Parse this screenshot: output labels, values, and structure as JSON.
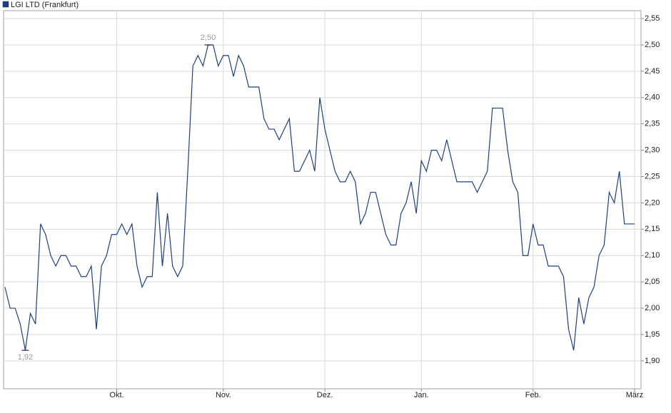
{
  "chart_data": {
    "type": "line",
    "categories": [
      null,
      null,
      null,
      null,
      null,
      null,
      null,
      null,
      null,
      null,
      null,
      null,
      null,
      null,
      null,
      null,
      null,
      null,
      null,
      null,
      null,
      null,
      "Okt.",
      null,
      null,
      null,
      null,
      null,
      null,
      null,
      null,
      null,
      null,
      null,
      null,
      null,
      null,
      null,
      null,
      null,
      null,
      null,
      null,
      "Nov.",
      null,
      null,
      null,
      null,
      null,
      null,
      null,
      null,
      null,
      null,
      null,
      null,
      null,
      null,
      null,
      null,
      null,
      null,
      null,
      "Dez.",
      null,
      null,
      null,
      null,
      null,
      null,
      null,
      null,
      null,
      null,
      null,
      null,
      null,
      null,
      null,
      null,
      null,
      null,
      "Jan.",
      null,
      null,
      null,
      null,
      null,
      null,
      null,
      null,
      null,
      null,
      null,
      null,
      null,
      null,
      null,
      null,
      null,
      null,
      null,
      null,
      null,
      "Feb.",
      null,
      null,
      null,
      null,
      null,
      null,
      null,
      null,
      null,
      null,
      null,
      null,
      null,
      null,
      null,
      null,
      null,
      null,
      null,
      "März"
    ],
    "series": [
      {
        "name": "LGI LTD (Frankfurt)",
        "color": "#1c3f8c",
        "values": [
          2.04,
          2.0,
          2.0,
          1.97,
          1.92,
          1.99,
          1.97,
          2.16,
          2.14,
          2.1,
          2.08,
          2.1,
          2.1,
          2.08,
          2.08,
          2.06,
          2.06,
          2.08,
          1.96,
          2.08,
          2.1,
          2.14,
          2.14,
          2.16,
          2.14,
          2.16,
          2.08,
          2.04,
          2.06,
          2.06,
          2.22,
          2.08,
          2.18,
          2.08,
          2.06,
          2.08,
          2.26,
          2.46,
          2.48,
          2.46,
          2.5,
          2.5,
          2.46,
          2.48,
          2.48,
          2.44,
          2.48,
          2.46,
          2.42,
          2.42,
          2.42,
          2.36,
          2.34,
          2.34,
          2.32,
          2.34,
          2.36,
          2.26,
          2.26,
          2.28,
          2.3,
          2.26,
          2.4,
          2.34,
          2.3,
          2.26,
          2.24,
          2.24,
          2.26,
          2.24,
          2.16,
          2.18,
          2.22,
          2.22,
          2.18,
          2.14,
          2.12,
          2.12,
          2.18,
          2.2,
          2.24,
          2.18,
          2.28,
          2.26,
          2.3,
          2.3,
          2.28,
          2.32,
          2.28,
          2.24,
          2.24,
          2.24,
          2.24,
          2.22,
          2.24,
          2.26,
          2.38,
          2.38,
          2.38,
          2.3,
          2.24,
          2.22,
          2.1,
          2.1,
          2.16,
          2.12,
          2.12,
          2.08,
          2.08,
          2.08,
          2.06,
          1.96,
          1.92,
          2.02,
          1.97,
          2.02,
          2.04,
          2.1,
          2.12,
          2.22,
          2.2,
          2.26,
          2.16,
          2.16,
          2.16
        ]
      }
    ],
    "annotations": [
      {
        "text": "2,50",
        "value": 2.5
      },
      {
        "text": "1,92",
        "value": 1.92
      }
    ],
    "ylim": [
      1.847,
      2.565
    ],
    "yticks": [
      {
        "value": 1.9,
        "label": "1,90"
      },
      {
        "value": 1.95,
        "label": "1,95"
      },
      {
        "value": 2.0,
        "label": "2,00"
      },
      {
        "value": 2.05,
        "label": "2,05"
      },
      {
        "value": 2.1,
        "label": "2,10"
      },
      {
        "value": 2.15,
        "label": "2,15"
      },
      {
        "value": 2.2,
        "label": "2,20"
      },
      {
        "value": 2.25,
        "label": "2,25"
      },
      {
        "value": 2.3,
        "label": "2,30"
      },
      {
        "value": 2.35,
        "label": "2,35"
      },
      {
        "value": 2.4,
        "label": "2,40"
      },
      {
        "value": 2.45,
        "label": "2,45"
      },
      {
        "value": 2.5,
        "label": "2,50"
      },
      {
        "value": 2.55,
        "label": "2,55"
      }
    ],
    "grid": true,
    "legend": "top-left"
  }
}
